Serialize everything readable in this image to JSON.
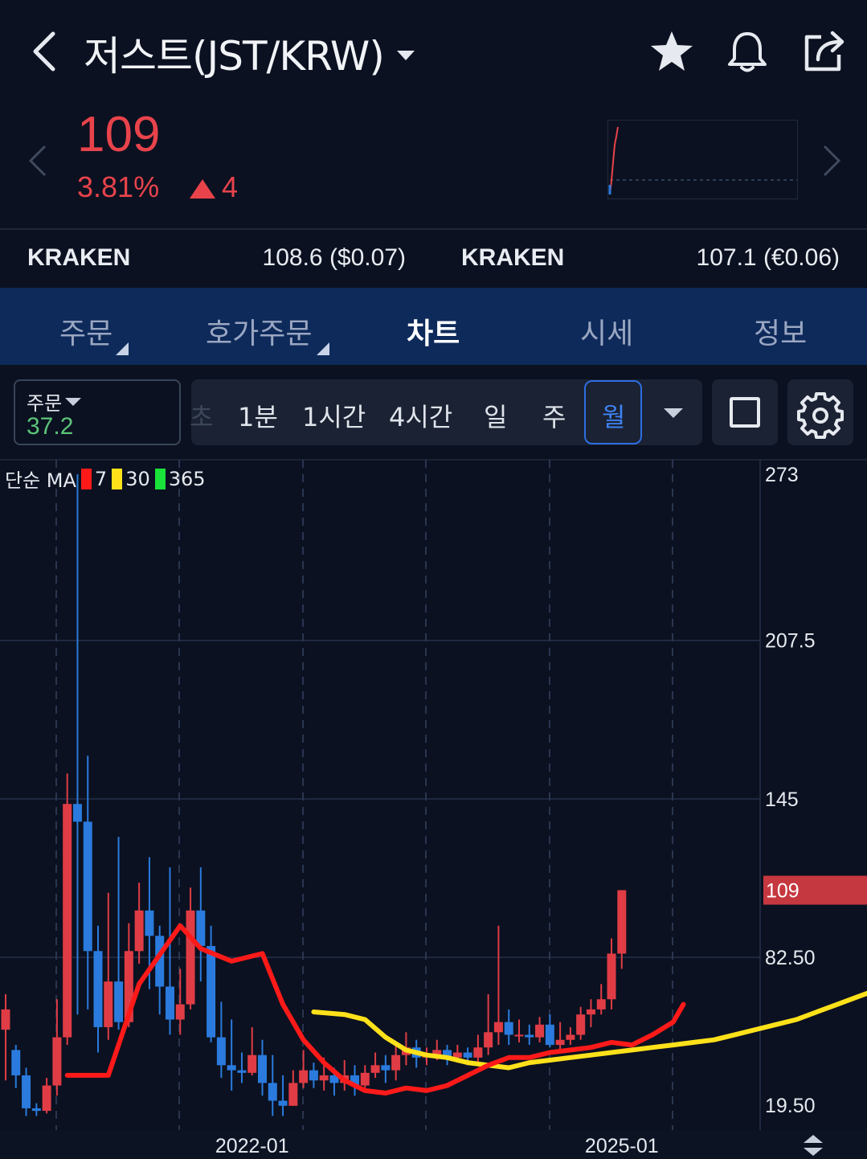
{
  "header": {
    "title": "저스트(JST/KRW)"
  },
  "price": {
    "current": "109",
    "change_pct": "3.81%",
    "change_abs": "4"
  },
  "exchanges": [
    {
      "name": "KRAKEN",
      "value": "108.6 ($0.07)"
    },
    {
      "name": "KRAKEN",
      "value": "107.1 (€0.06)"
    }
  ],
  "tabs": [
    {
      "label": "주문"
    },
    {
      "label": "호가주문"
    },
    {
      "label": "차트"
    },
    {
      "label": "시세"
    },
    {
      "label": "정보"
    }
  ],
  "controls": {
    "order_label": "주문",
    "order_value": "37.2",
    "intervals_prefix": "초",
    "intervals": [
      "1분",
      "1시간",
      "4시간",
      "일",
      "주"
    ],
    "active_interval": "월"
  },
  "colors": {
    "up": "#e03c45",
    "down": "#2a7bdd",
    "ma7": "#ff1a1a",
    "ma30": "#ffe11a",
    "ma365": "#19e23a",
    "accent": "#2d6ee0"
  },
  "legend": {
    "label": "단순 MA",
    "periods": [
      "7",
      "30",
      "365"
    ]
  },
  "chart_data": {
    "type": "candlestick",
    "timeframe": "monthly",
    "y_axis_ticks": [
      "273",
      "207.5",
      "145",
      "82.50",
      "19.50"
    ],
    "ylim": [
      19.5,
      273
    ],
    "last_price_label": "109",
    "x_axis_ticks": [
      {
        "label": "2022-01",
        "index": 24
      },
      {
        "label": "2025-01",
        "index": 60
      }
    ],
    "candles": [
      [
        54,
        62,
        34,
        68
      ],
      [
        46,
        36,
        31,
        48
      ],
      [
        36,
        23,
        20,
        39
      ],
      [
        23,
        22,
        20,
        25
      ],
      [
        22,
        32,
        21,
        35
      ],
      [
        32,
        51,
        28,
        66
      ],
      [
        51,
        143,
        48,
        155
      ],
      [
        143,
        136,
        60,
        273
      ],
      [
        136,
        85,
        62,
        162
      ],
      [
        85,
        55,
        45,
        95
      ],
      [
        55,
        73,
        50,
        108
      ],
      [
        73,
        57,
        54,
        130
      ],
      [
        57,
        85,
        55,
        96
      ],
      [
        85,
        101,
        80,
        112
      ],
      [
        101,
        91,
        70,
        122
      ],
      [
        91,
        71,
        60,
        95
      ],
      [
        71,
        58,
        52,
        118
      ],
      [
        58,
        64,
        52,
        78
      ],
      [
        64,
        101,
        62,
        110
      ],
      [
        101,
        87,
        73,
        118
      ],
      [
        87,
        51,
        49,
        95
      ],
      [
        51,
        40,
        35,
        65
      ],
      [
        40,
        38,
        30,
        58
      ],
      [
        38,
        37,
        33,
        45
      ],
      [
        37,
        44,
        36,
        55
      ],
      [
        44,
        33,
        28,
        50
      ],
      [
        33,
        26,
        20,
        44
      ],
      [
        26,
        24,
        20,
        36
      ],
      [
        24,
        33,
        24,
        38
      ],
      [
        33,
        38,
        31,
        46
      ],
      [
        38,
        34,
        31,
        41
      ],
      [
        34,
        36,
        30,
        43
      ],
      [
        36,
        33,
        28,
        39
      ],
      [
        33,
        36,
        30,
        42
      ],
      [
        36,
        32,
        28,
        40
      ],
      [
        32,
        37,
        31,
        40
      ],
      [
        37,
        40,
        35,
        45
      ],
      [
        40,
        38,
        33,
        44
      ],
      [
        38,
        44,
        34,
        48
      ],
      [
        44,
        47,
        40,
        53
      ],
      [
        47,
        43,
        39,
        50
      ],
      [
        43,
        44,
        40,
        47
      ],
      [
        44,
        46,
        42,
        50
      ],
      [
        46,
        43,
        40,
        48
      ],
      [
        43,
        45,
        41,
        48
      ],
      [
        45,
        43,
        40,
        47
      ],
      [
        43,
        47,
        41,
        52
      ],
      [
        47,
        53,
        44,
        68
      ],
      [
        53,
        57,
        48,
        95
      ],
      [
        57,
        52,
        48,
        62
      ],
      [
        52,
        52,
        49,
        58
      ],
      [
        52,
        51,
        48,
        56
      ],
      [
        51,
        56,
        49,
        59
      ],
      [
        56,
        48,
        47,
        60
      ],
      [
        48,
        50,
        46,
        57
      ],
      [
        50,
        52,
        48,
        55
      ],
      [
        52,
        60,
        50,
        63
      ],
      [
        60,
        62,
        55,
        66
      ],
      [
        62,
        66,
        60,
        72
      ],
      [
        66,
        84,
        62,
        90
      ],
      [
        84,
        109,
        78,
        109
      ]
    ],
    "ma7": [
      [
        0,
        36
      ],
      [
        4,
        36
      ],
      [
        7,
        72
      ],
      [
        11,
        95
      ],
      [
        13,
        86
      ],
      [
        16,
        81
      ],
      [
        19,
        84
      ],
      [
        21,
        64
      ],
      [
        23,
        50
      ],
      [
        25,
        41
      ],
      [
        27,
        34
      ],
      [
        29,
        30
      ],
      [
        31,
        29
      ],
      [
        33,
        31
      ],
      [
        35,
        30
      ],
      [
        37,
        32
      ],
      [
        39,
        36
      ],
      [
        41,
        40
      ],
      [
        43,
        43
      ],
      [
        45,
        43
      ],
      [
        47,
        45
      ],
      [
        49,
        46
      ],
      [
        51,
        47
      ],
      [
        53,
        49
      ],
      [
        55,
        48
      ],
      [
        57,
        52
      ],
      [
        59,
        57
      ],
      [
        60,
        64
      ]
    ],
    "ma30": [
      [
        0,
        61
      ],
      [
        3,
        60
      ],
      [
        5,
        58
      ],
      [
        7,
        51
      ],
      [
        9,
        46
      ],
      [
        11,
        44
      ],
      [
        13,
        43
      ],
      [
        15,
        41
      ],
      [
        17,
        40
      ],
      [
        19,
        39
      ],
      [
        21,
        41
      ],
      [
        23,
        42
      ],
      [
        25,
        43
      ],
      [
        27,
        44
      ],
      [
        29,
        45
      ],
      [
        31,
        46
      ],
      [
        33,
        47
      ],
      [
        35,
        48
      ],
      [
        37,
        49
      ],
      [
        39,
        50
      ],
      [
        41,
        52
      ],
      [
        43,
        54
      ],
      [
        45,
        56
      ],
      [
        47,
        58
      ],
      [
        49,
        61
      ],
      [
        51,
        64
      ],
      [
        53,
        67
      ],
      [
        55,
        70
      ],
      [
        58,
        76
      ],
      [
        60,
        81
      ]
    ]
  }
}
